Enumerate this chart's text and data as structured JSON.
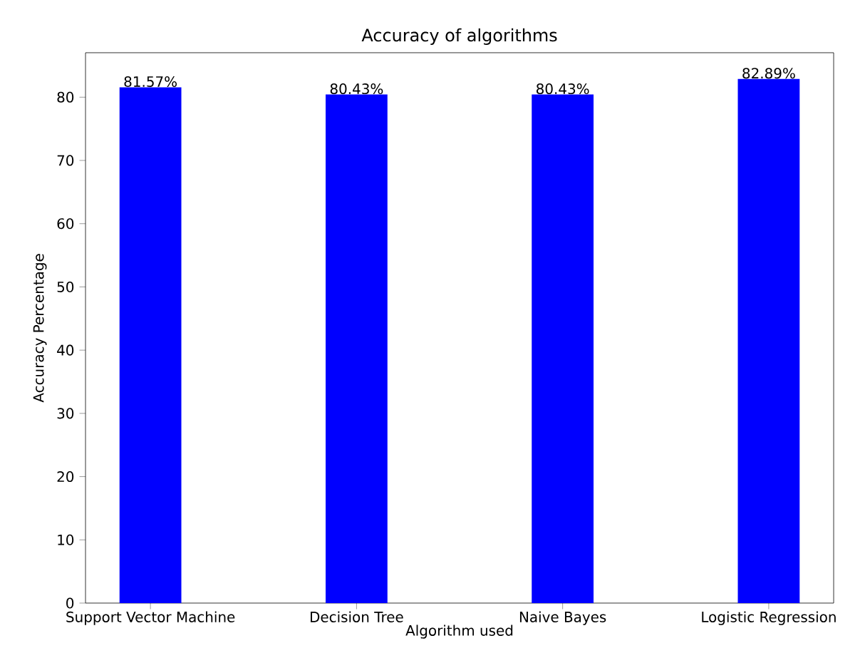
{
  "chart_data": {
    "type": "bar",
    "title": "Accuracy of algorithms",
    "xlabel": "Algorithm used",
    "ylabel": "Accuracy Percentage",
    "categories": [
      "Support Vector Machine",
      "Decision Tree",
      "Naive Bayes",
      "Logistic Regression"
    ],
    "values": [
      81.57,
      80.43,
      80.43,
      82.89
    ],
    "value_labels": [
      "81.57%",
      "80.43%",
      "80.43%",
      "82.89%"
    ],
    "color": "#0000ff",
    "ylim": [
      0,
      87.03
    ],
    "yticks": [
      0,
      10,
      20,
      30,
      40,
      50,
      60,
      70,
      80
    ]
  }
}
